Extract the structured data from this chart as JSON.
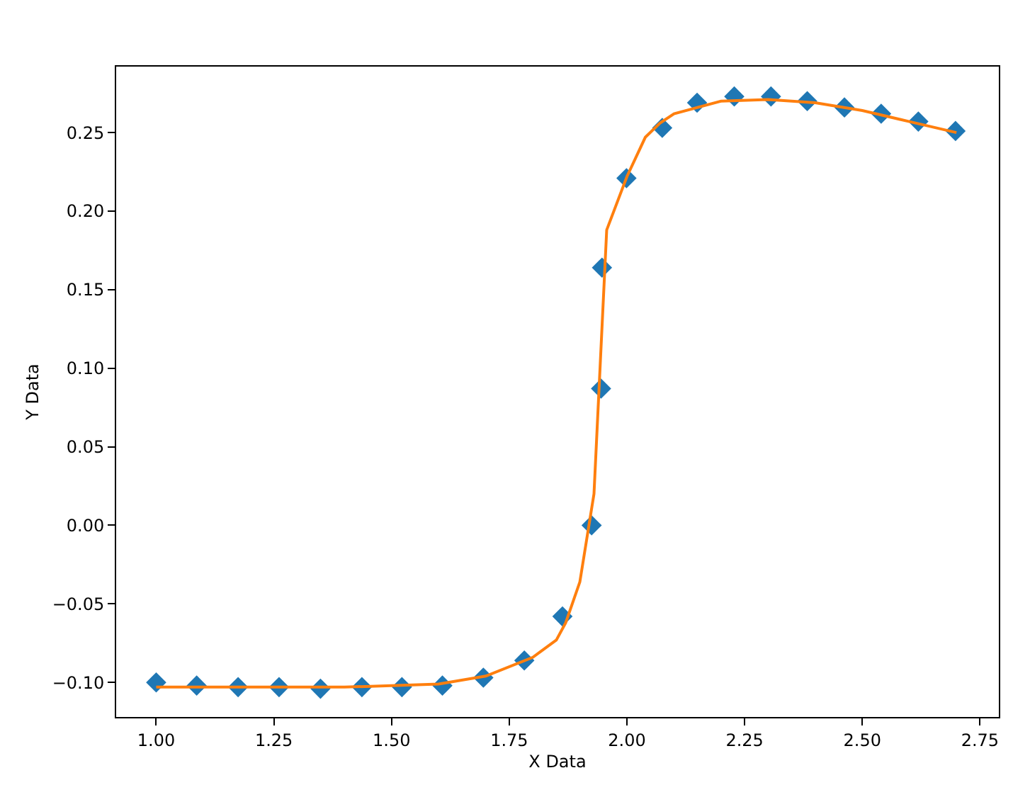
{
  "chart_data": {
    "type": "scatter",
    "xlabel": "X Data",
    "ylabel": "Y Data",
    "series": [
      {
        "color": "#1f77b4",
        "marker": "diamond",
        "x": [
          1.0,
          1.086,
          1.174,
          1.261,
          1.349,
          1.437,
          1.522,
          1.608,
          1.695,
          1.782,
          1.863,
          1.925,
          1.945,
          1.947,
          1.999,
          2.075,
          2.149,
          2.228,
          2.306,
          2.383,
          2.462,
          2.54,
          2.619,
          2.698
        ],
        "values": [
          -0.1,
          -0.102,
          -0.103,
          -0.103,
          -0.104,
          -0.103,
          -0.103,
          -0.102,
          -0.097,
          -0.086,
          -0.058,
          0.0,
          0.087,
          0.164,
          0.221,
          0.253,
          0.269,
          0.273,
          0.273,
          0.27,
          0.266,
          0.262,
          0.257,
          0.251
        ]
      },
      {
        "type": "line",
        "color": "#ff7f0e",
        "marker": "none",
        "line_style": "solid",
        "x": [
          1.0,
          1.2,
          1.4,
          1.6,
          1.7,
          1.8,
          1.85,
          1.87,
          1.9,
          1.93,
          1.957,
          2.0,
          2.039,
          2.07,
          2.1,
          2.2,
          2.3,
          2.4,
          2.5,
          2.6,
          2.7
        ],
        "values": [
          -0.103,
          -0.103,
          -0.103,
          -0.101,
          -0.096,
          -0.084,
          -0.073,
          -0.062,
          -0.036,
          0.02,
          0.188,
          0.222,
          0.247,
          0.256,
          0.262,
          0.27,
          0.271,
          0.269,
          0.264,
          0.257,
          0.25
        ]
      }
    ],
    "xlim": [
      0.915,
      2.79
    ],
    "xticks": [
      {
        "value": 1,
        "label": "1.00"
      },
      {
        "value": 1.25,
        "label": "1.25"
      },
      {
        "value": 1.5,
        "label": "1.50"
      },
      {
        "value": 1.75,
        "label": "1.75"
      },
      {
        "value": 2,
        "label": "2.00"
      },
      {
        "value": 2.25,
        "label": "2.25"
      },
      {
        "value": 2.5,
        "label": "2.50"
      },
      {
        "value": 2.75,
        "label": "2.75"
      }
    ],
    "ylim": [
      -0.122,
      0.292
    ],
    "yticks": [
      {
        "value": -0.1,
        "label": "−0.10"
      },
      {
        "value": -0.05,
        "label": "−0.05"
      },
      {
        "value": 0,
        "label": "0.00"
      },
      {
        "value": 0.05,
        "label": "0.05"
      },
      {
        "value": 0.1,
        "label": "0.10"
      },
      {
        "value": 0.15,
        "label": "0.15"
      },
      {
        "value": 0.2,
        "label": "0.20"
      },
      {
        "value": 0.25,
        "label": "0.25"
      }
    ]
  }
}
